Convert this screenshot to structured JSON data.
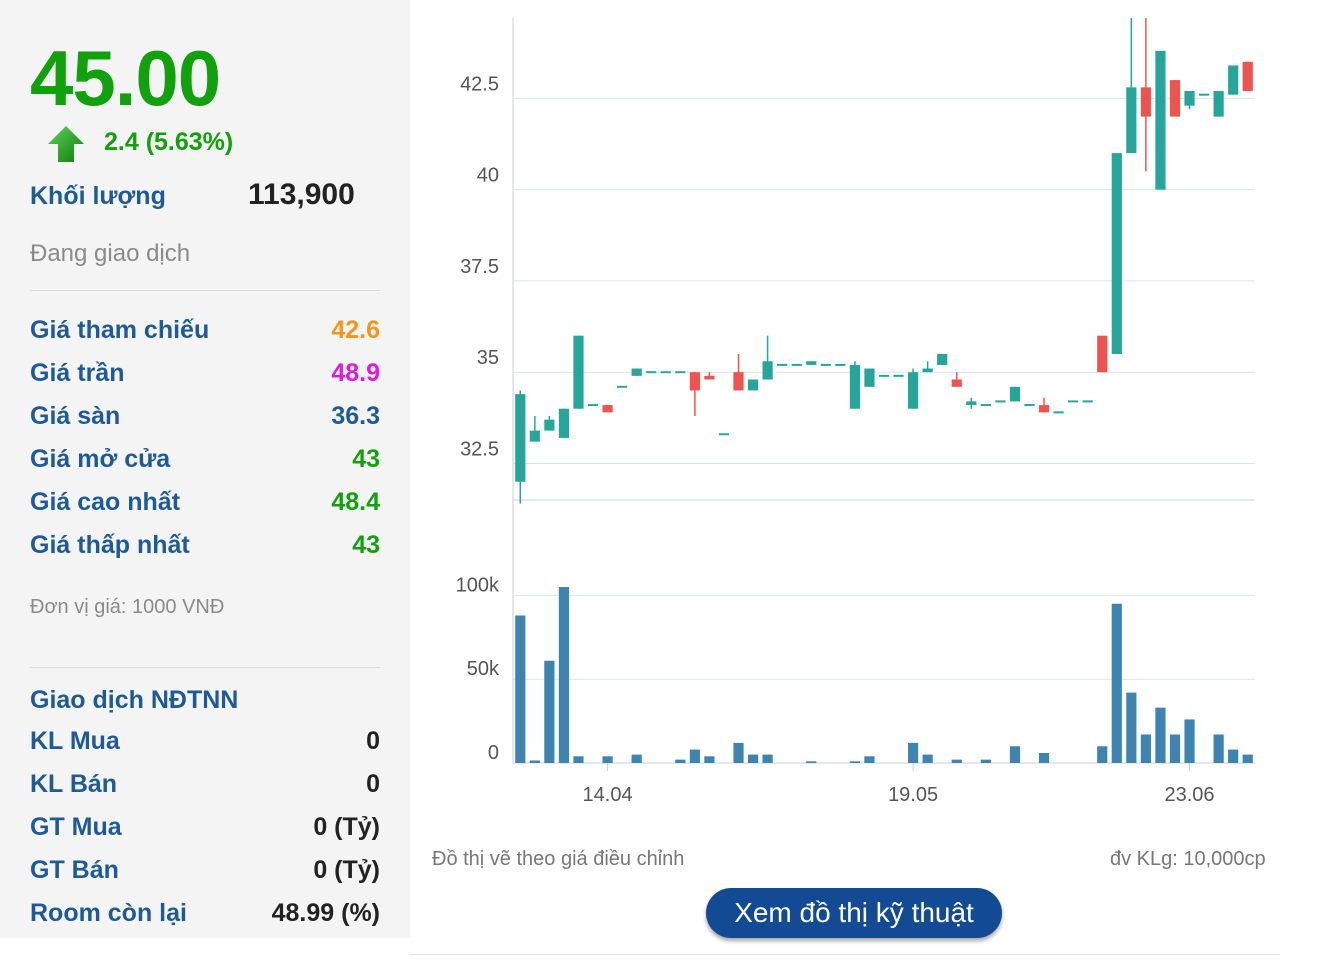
{
  "quote": {
    "price": "45.00",
    "change": "2.4 (5.63%)",
    "volume_label": "Khối lượng",
    "volume_value": "113,900",
    "status": "Đang giao dịch"
  },
  "price_rows": [
    {
      "label": "Giá tham chiếu",
      "value": "42.6",
      "color": "#f7941d"
    },
    {
      "label": "Giá trần",
      "value": "48.9",
      "color": "#e01adf"
    },
    {
      "label": "Giá sàn",
      "value": "36.3",
      "color": "#1e5a98"
    },
    {
      "label": "Giá mở cửa",
      "value": "43",
      "color": "#10a10c"
    },
    {
      "label": "Giá cao nhất",
      "value": "48.4",
      "color": "#10a10c"
    },
    {
      "label": "Giá thấp nhất",
      "value": "43",
      "color": "#10a10c"
    }
  ],
  "unit_note": "Đơn vị giá: 1000 VNĐ",
  "foreign": {
    "title": "Giao dịch NĐTNN",
    "rows": [
      {
        "label": "KL Mua",
        "value": "0"
      },
      {
        "label": "KL Bán",
        "value": "0"
      },
      {
        "label": "GT Mua",
        "value": "0 (Tỷ)"
      },
      {
        "label": "GT Bán",
        "value": "0 (Tỷ)"
      },
      {
        "label": "Room còn lại",
        "value": "48.99 (%)"
      }
    ]
  },
  "colors": {
    "up": "#26a69a",
    "down": "#ef5350",
    "volume": "#3d85b0",
    "grid": "#dde3ea"
  },
  "chart_data": {
    "type": "candlestick",
    "price_axis": {
      "ticks": [
        "32.5",
        "35",
        "37.5",
        "40",
        "42.5"
      ],
      "range": [
        31.5,
        44.7
      ]
    },
    "volume_axis": {
      "ticks": [
        "0",
        "50k",
        "100k"
      ],
      "range": [
        0,
        105000
      ]
    },
    "x_ticks": [
      {
        "label": "14.04",
        "index": 6
      },
      {
        "label": "19.05",
        "index": 27
      },
      {
        "label": "23.06",
        "index": 46
      }
    ],
    "candles": [
      {
        "o": 32,
        "h": 34.5,
        "l": 31.4,
        "c": 34.4,
        "v": 88000
      },
      {
        "o": 33.1,
        "h": 33.8,
        "l": 33.1,
        "c": 33.4,
        "v": 1500
      },
      {
        "o": 33.4,
        "h": 33.8,
        "l": 33.4,
        "c": 33.7,
        "v": 61000
      },
      {
        "o": 33.2,
        "h": 34,
        "l": 33.2,
        "c": 34,
        "v": 105000
      },
      {
        "o": 34,
        "h": 36,
        "l": 34,
        "c": 36,
        "v": 4000
      },
      {
        "o": 34.1,
        "h": 34.1,
        "l": 34.1,
        "c": 34.1,
        "v": 0
      },
      {
        "o": 34.1,
        "h": 34.1,
        "l": 33.9,
        "c": 33.9,
        "v": 4000
      },
      {
        "o": 34.6,
        "h": 34.6,
        "l": 34.6,
        "c": 34.6,
        "v": 0
      },
      {
        "o": 34.9,
        "h": 35.1,
        "l": 34.9,
        "c": 35.1,
        "v": 5000
      },
      {
        "o": 35,
        "h": 35,
        "l": 35,
        "c": 35,
        "v": 0
      },
      {
        "o": 35,
        "h": 35,
        "l": 35,
        "c": 35,
        "v": 0
      },
      {
        "o": 35,
        "h": 35,
        "l": 35,
        "c": 35,
        "v": 2000
      },
      {
        "o": 35,
        "h": 35,
        "l": 33.8,
        "c": 34.5,
        "v": 8000
      },
      {
        "o": 34.9,
        "h": 35,
        "l": 34.8,
        "c": 34.8,
        "v": 4000
      },
      {
        "o": 33.3,
        "h": 33.3,
        "l": 33.3,
        "c": 33.3,
        "v": 0
      },
      {
        "o": 35,
        "h": 35.5,
        "l": 34.5,
        "c": 34.5,
        "v": 12000
      },
      {
        "o": 34.5,
        "h": 34.8,
        "l": 34.5,
        "c": 34.8,
        "v": 5000
      },
      {
        "o": 34.8,
        "h": 36,
        "l": 34.8,
        "c": 35.3,
        "v": 5000
      },
      {
        "o": 35.2,
        "h": 35.2,
        "l": 35.2,
        "c": 35.2,
        "v": 0
      },
      {
        "o": 35.2,
        "h": 35.2,
        "l": 35.2,
        "c": 35.2,
        "v": 0
      },
      {
        "o": 35.2,
        "h": 35.3,
        "l": 35.2,
        "c": 35.3,
        "v": 1000
      },
      {
        "o": 35.2,
        "h": 35.2,
        "l": 35.2,
        "c": 35.2,
        "v": 0
      },
      {
        "o": 35.2,
        "h": 35.2,
        "l": 35.2,
        "c": 35.2,
        "v": 0
      },
      {
        "o": 34,
        "h": 35.3,
        "l": 34,
        "c": 35.2,
        "v": 1000
      },
      {
        "o": 34.6,
        "h": 35.1,
        "l": 34.6,
        "c": 35.1,
        "v": 4000
      },
      {
        "o": 34.9,
        "h": 34.9,
        "l": 34.9,
        "c": 34.9,
        "v": 0
      },
      {
        "o": 34.9,
        "h": 34.9,
        "l": 34.9,
        "c": 34.9,
        "v": 0
      },
      {
        "o": 34,
        "h": 35.1,
        "l": 34,
        "c": 35,
        "v": 12000
      },
      {
        "o": 35,
        "h": 35.3,
        "l": 35,
        "c": 35.1,
        "v": 5000
      },
      {
        "o": 35.2,
        "h": 35.5,
        "l": 35.2,
        "c": 35.5,
        "v": 0
      },
      {
        "o": 34.8,
        "h": 35,
        "l": 34.6,
        "c": 34.6,
        "v": 2000
      },
      {
        "o": 34.1,
        "h": 34.3,
        "l": 34,
        "c": 34.2,
        "v": 0
      },
      {
        "o": 34.1,
        "h": 34.1,
        "l": 34.1,
        "c": 34.1,
        "v": 2000
      },
      {
        "o": 34.2,
        "h": 34.2,
        "l": 34.2,
        "c": 34.2,
        "v": 0
      },
      {
        "o": 34.2,
        "h": 34.6,
        "l": 34.2,
        "c": 34.6,
        "v": 10000
      },
      {
        "o": 34.1,
        "h": 34.1,
        "l": 34.1,
        "c": 34.1,
        "v": 0
      },
      {
        "o": 34.1,
        "h": 34.3,
        "l": 33.9,
        "c": 33.9,
        "v": 6000
      },
      {
        "o": 33.9,
        "h": 33.9,
        "l": 33.9,
        "c": 33.9,
        "v": 0
      },
      {
        "o": 34.2,
        "h": 34.2,
        "l": 34.2,
        "c": 34.2,
        "v": 0
      },
      {
        "o": 34.2,
        "h": 34.2,
        "l": 34.2,
        "c": 34.2,
        "v": 0
      },
      {
        "o": 36,
        "h": 36,
        "l": 35,
        "c": 35,
        "v": 10000
      },
      {
        "o": 35.5,
        "h": 41,
        "l": 35.5,
        "c": 41,
        "v": 95000
      },
      {
        "o": 41,
        "h": 44.7,
        "l": 41,
        "c": 42.8,
        "v": 42000
      },
      {
        "o": 42.8,
        "h": 44.7,
        "l": 40.5,
        "c": 42,
        "v": 17000
      },
      {
        "o": 40,
        "h": 43.8,
        "l": 40,
        "c": 43.8,
        "v": 33000
      },
      {
        "o": 43,
        "h": 43,
        "l": 42,
        "c": 42,
        "v": 17000
      },
      {
        "o": 42.3,
        "h": 42.7,
        "l": 42.2,
        "c": 42.7,
        "v": 26000
      },
      {
        "o": 42.6,
        "h": 42.6,
        "l": 42.6,
        "c": 42.6,
        "v": 0
      },
      {
        "o": 42,
        "h": 42.7,
        "l": 42,
        "c": 42.7,
        "v": 17000
      },
      {
        "o": 42.6,
        "h": 43.4,
        "l": 42.6,
        "c": 43.4,
        "v": 8000
      },
      {
        "o": 43.5,
        "h": 43.5,
        "l": 42.7,
        "c": 42.7,
        "v": 5000
      }
    ],
    "footnote_left": "Đồ thị vẽ theo giá điều chỉnh",
    "footnote_right": "đv KLg: 10,000cp",
    "button_label": "Xem đồ thị kỹ thuật"
  }
}
